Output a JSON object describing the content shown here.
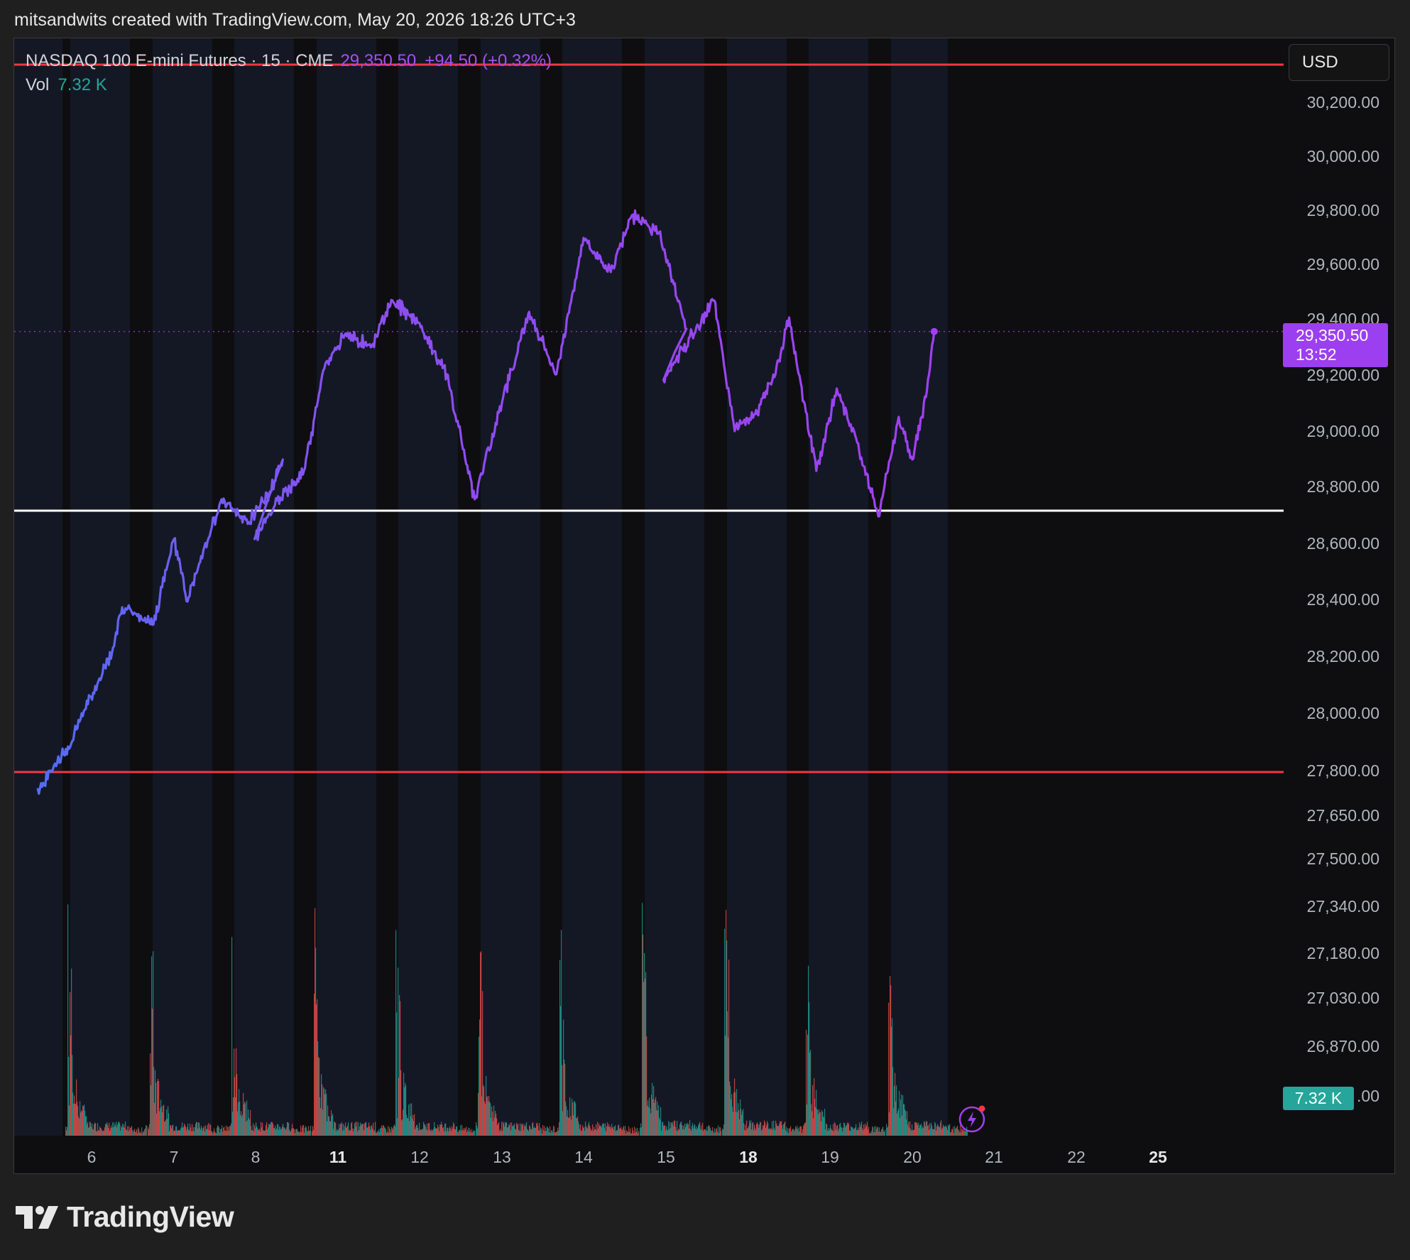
{
  "header": {
    "credit": "mitsandwits created with TradingView.com, May 20, 2026 18:26 UTC+3"
  },
  "legend": {
    "symbol": "NASDAQ 100 E-mini Futures · 15 · CME",
    "price": "29,350.50",
    "change": "+94.50 (+0.32%)",
    "vol_label": "Vol",
    "vol_value": "7.32 K"
  },
  "currency": "USD",
  "price_label": {
    "price": "29,350.50",
    "countdown": "13:52"
  },
  "volume_label": "7.32 K",
  "colors": {
    "line_start": "#4f6ef7",
    "line_end": "#a23ff0",
    "red_line": "#f23645",
    "white_line": "#ffffff",
    "vol_up": "#26a69a",
    "vol_down": "#ef5350"
  },
  "icons": {
    "replay": "lightning-bolt-icon"
  },
  "brand": "TradingView",
  "chart_data": {
    "type": "line",
    "series": [
      {
        "values": [
          {
            "x": "May 5 20:00",
            "y": 27740
          },
          {
            "x": "May 6 06:00",
            "y": 27900
          },
          {
            "x": "May 6 10:00",
            "y": 28020
          },
          {
            "x": "May 6 14:00",
            "y": 28120
          },
          {
            "x": "May 6 18:00",
            "y": 28220
          },
          {
            "x": "May 6 21:00",
            "y": 28380
          },
          {
            "x": "May 7 06:00",
            "y": 28320
          },
          {
            "x": "May 7 12:00",
            "y": 28620
          },
          {
            "x": "May 7 16:00",
            "y": 28400
          },
          {
            "x": "May 7 20:00",
            "y": 28560
          },
          {
            "x": "May 8 02:00",
            "y": 28760
          },
          {
            "x": "May 8 10:00",
            "y": 28680
          },
          {
            "x": "May 8 16:00",
            "y": 28780
          },
          {
            "x": "May 8 20:00",
            "y": 28900
          },
          {
            "x": "May 9 00:00",
            "y": 28620
          },
          {
            "x": "May 9 06:00",
            "y": 28740
          },
          {
            "x": "May 11 02:00",
            "y": 28860
          },
          {
            "x": "May 11 08:00",
            "y": 29220
          },
          {
            "x": "May 11 14:00",
            "y": 29340
          },
          {
            "x": "May 11 22:00",
            "y": 29300
          },
          {
            "x": "May 12 04:00",
            "y": 29460
          },
          {
            "x": "May 12 12:00",
            "y": 29380
          },
          {
            "x": "May 12 20:00",
            "y": 29200
          },
          {
            "x": "May 13 04:00",
            "y": 28760
          },
          {
            "x": "May 13 12:00",
            "y": 29100
          },
          {
            "x": "May 13 20:00",
            "y": 29420
          },
          {
            "x": "May 14 04:00",
            "y": 29200
          },
          {
            "x": "May 14 12:00",
            "y": 29680
          },
          {
            "x": "May 14 20:00",
            "y": 29560
          },
          {
            "x": "May 15 02:00",
            "y": 29760
          },
          {
            "x": "May 15 10:00",
            "y": 29700
          },
          {
            "x": "May 15 18:00",
            "y": 29360
          },
          {
            "x": "May 16 00:00",
            "y": 29180
          },
          {
            "x": "May 18 02:00",
            "y": 29460
          },
          {
            "x": "May 18 08:00",
            "y": 29000
          },
          {
            "x": "May 18 14:00",
            "y": 29060
          },
          {
            "x": "May 18 20:00",
            "y": 29200
          },
          {
            "x": "May 19 00:00",
            "y": 29400
          },
          {
            "x": "May 19 08:00",
            "y": 28860
          },
          {
            "x": "May 19 14:00",
            "y": 29150
          },
          {
            "x": "May 19 20:00",
            "y": 28960
          },
          {
            "x": "May 20 02:00",
            "y": 28700
          },
          {
            "x": "May 20 08:00",
            "y": 29050
          },
          {
            "x": "May 20 12:00",
            "y": 28900
          },
          {
            "x": "May 20 16:00",
            "y": 29120
          },
          {
            "x": "May 20 18:26",
            "y": 29350.5
          }
        ]
      }
    ],
    "horizontal_lines": [
      {
        "y": 30290,
        "color": "red"
      },
      {
        "y": 28720,
        "color": "white"
      },
      {
        "y": 27800,
        "color": "red"
      }
    ],
    "last_price": 29350.5,
    "x_ticks": [
      "6",
      "7",
      "8",
      "11",
      "12",
      "13",
      "14",
      "15",
      "18",
      "19",
      "20",
      "21",
      "22",
      "25"
    ],
    "x_ticks_bold": [
      "11",
      "18",
      "25"
    ],
    "y_ticks": [
      "30,200.00",
      "30,000.00",
      "29,800.00",
      "29,600.00",
      "29,400.00",
      "29,200.00",
      "29,000.00",
      "28,800.00",
      "28,600.00",
      "28,400.00",
      "28,200.00",
      "28,000.00",
      "27,800.00",
      "27,650.00",
      "27,500.00",
      "27,340.00",
      "27,180.00",
      "27,030.00",
      "26,870.00",
      ".00"
    ],
    "volume": {
      "last": "7.32 K",
      "sessions": [
        "6",
        "7",
        "8",
        "11",
        "12",
        "13",
        "14",
        "15",
        "18",
        "19",
        "20"
      ]
    }
  }
}
